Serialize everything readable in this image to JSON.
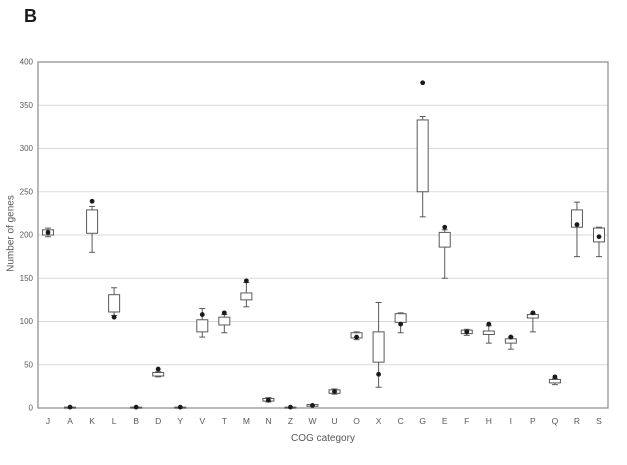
{
  "figure": {
    "panel_label": "B"
  },
  "chart_data": {
    "type": "boxplot",
    "title": "",
    "xlabel": "COG category",
    "ylabel": "Number of genes",
    "ylim": [
      0,
      400
    ],
    "yticks": [
      0,
      50,
      100,
      150,
      200,
      250,
      300,
      350,
      400
    ],
    "grid": "horizontal-only",
    "legend": "none",
    "marker_meaning": "black filled dot per category",
    "categories": [
      "J",
      "A",
      "K",
      "L",
      "B",
      "D",
      "Y",
      "V",
      "T",
      "M",
      "N",
      "Z",
      "W",
      "U",
      "O",
      "X",
      "C",
      "G",
      "E",
      "F",
      "H",
      "I",
      "P",
      "Q",
      "R",
      "S"
    ],
    "boxes": [
      {
        "category": "J",
        "whisker_low": 198,
        "box_bottom": 200,
        "box_top": 206,
        "whisker_high": 208,
        "point": 203
      },
      {
        "category": "A",
        "whisker_low": 0,
        "box_bottom": 0,
        "box_top": 1,
        "whisker_high": 1,
        "point": 1
      },
      {
        "category": "K",
        "whisker_low": 180,
        "box_bottom": 202,
        "box_top": 229,
        "whisker_high": 233,
        "point": 239
      },
      {
        "category": "L",
        "whisker_low": 107,
        "box_bottom": 111,
        "box_top": 131,
        "whisker_high": 139,
        "point": 105
      },
      {
        "category": "B",
        "whisker_low": 0,
        "box_bottom": 0,
        "box_top": 1,
        "whisker_high": 1,
        "point": 1
      },
      {
        "category": "D",
        "whisker_low": 36,
        "box_bottom": 37,
        "box_top": 41,
        "whisker_high": 42,
        "point": 45
      },
      {
        "category": "Y",
        "whisker_low": 0,
        "box_bottom": 0,
        "box_top": 1,
        "whisker_high": 1,
        "point": 1
      },
      {
        "category": "V",
        "whisker_low": 82,
        "box_bottom": 88,
        "box_top": 102,
        "whisker_high": 115,
        "point": 108
      },
      {
        "category": "T",
        "whisker_low": 87,
        "box_bottom": 96,
        "box_top": 105,
        "whisker_high": 108,
        "point": 110
      },
      {
        "category": "M",
        "whisker_low": 117,
        "box_bottom": 125,
        "box_top": 133,
        "whisker_high": 145,
        "point": 147
      },
      {
        "category": "N",
        "whisker_low": 7,
        "box_bottom": 8,
        "box_top": 11,
        "whisker_high": 12,
        "point": 9
      },
      {
        "category": "Z",
        "whisker_low": 0,
        "box_bottom": 0,
        "box_top": 1,
        "whisker_high": 1,
        "point": 1
      },
      {
        "category": "W",
        "whisker_low": 2,
        "box_bottom": 2,
        "box_top": 4,
        "whisker_high": 4,
        "point": 3
      },
      {
        "category": "U",
        "whisker_low": 16,
        "box_bottom": 17,
        "box_top": 21,
        "whisker_high": 22,
        "point": 19
      },
      {
        "category": "O",
        "whisker_low": 79,
        "box_bottom": 81,
        "box_top": 87,
        "whisker_high": 88,
        "point": 82
      },
      {
        "category": "X",
        "whisker_low": 24,
        "box_bottom": 53,
        "box_top": 88,
        "whisker_high": 122,
        "point": 39
      },
      {
        "category": "C",
        "whisker_low": 87,
        "box_bottom": 99,
        "box_top": 109,
        "whisker_high": 110,
        "point": 97
      },
      {
        "category": "G",
        "whisker_low": 221,
        "box_bottom": 250,
        "box_top": 333,
        "whisker_high": 337,
        "point": 376
      },
      {
        "category": "E",
        "whisker_low": 150,
        "box_bottom": 186,
        "box_top": 203,
        "whisker_high": 206,
        "point": 209
      },
      {
        "category": "F",
        "whisker_low": 84,
        "box_bottom": 86,
        "box_top": 90,
        "whisker_high": 91,
        "point": 88
      },
      {
        "category": "H",
        "whisker_low": 75,
        "box_bottom": 85,
        "box_top": 89,
        "whisker_high": 95,
        "point": 97
      },
      {
        "category": "I",
        "whisker_low": 68,
        "box_bottom": 75,
        "box_top": 80,
        "whisker_high": 82,
        "point": 82
      },
      {
        "category": "P",
        "whisker_low": 88,
        "box_bottom": 104,
        "box_top": 108,
        "whisker_high": 109,
        "point": 110
      },
      {
        "category": "Q",
        "whisker_low": 27,
        "box_bottom": 29,
        "box_top": 33,
        "whisker_high": 34,
        "point": 36
      },
      {
        "category": "R",
        "whisker_low": 175,
        "box_bottom": 209,
        "box_top": 229,
        "whisker_high": 238,
        "point": 212
      },
      {
        "category": "S",
        "whisker_low": 175,
        "box_bottom": 192,
        "box_top": 208,
        "whisker_high": 209,
        "point": 198
      }
    ],
    "colors": {
      "background": "#ffffff",
      "box_fill": "#ffffff",
      "box_stroke": "#595959",
      "whisker": "#595959",
      "point": "#1a1a1a",
      "gridline": "#d9d9d9",
      "frame": "#898989",
      "text": "#595959"
    }
  }
}
